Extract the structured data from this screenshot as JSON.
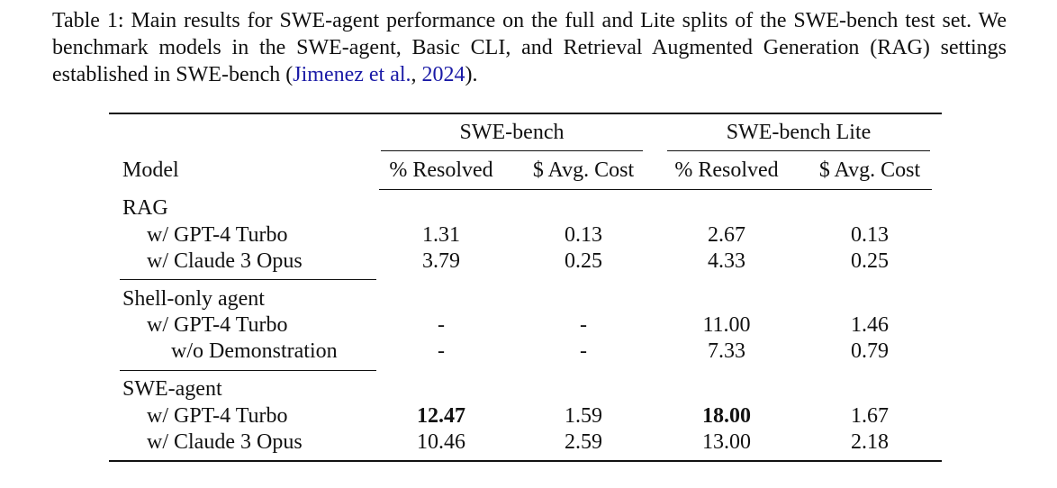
{
  "caption": {
    "label": "Table 1:",
    "text": " Main results for SWE-agent performance on the full and Lite splits of the SWE-bench test set. We benchmark models in the SWE-agent, Basic CLI, and Retrieval Augmented Generation (RAG) settings established in SWE-bench (",
    "cite_author": "Jimenez et al.",
    "cite_sep": ", ",
    "cite_year": "2024",
    "end": ")."
  },
  "table": {
    "group_headers": [
      "SWE-bench",
      "SWE-bench Lite"
    ],
    "columns": [
      "Model",
      "% Resolved",
      "$ Avg. Cost",
      "% Resolved",
      "$ Avg. Cost"
    ],
    "groups": [
      {
        "name": "RAG",
        "rows": [
          {
            "model": "w/ GPT-4 Turbo",
            "full_resolved": "1.31",
            "full_cost": "0.13",
            "lite_resolved": "2.67",
            "lite_cost": "0.13"
          },
          {
            "model": "w/ Claude 3 Opus",
            "full_resolved": "3.79",
            "full_cost": "0.25",
            "lite_resolved": "4.33",
            "lite_cost": "0.25"
          }
        ]
      },
      {
        "name": "Shell-only agent",
        "rows": [
          {
            "model": "w/ GPT-4 Turbo",
            "full_resolved": "-",
            "full_cost": "-",
            "lite_resolved": "11.00",
            "lite_cost": "1.46"
          },
          {
            "model": "w/o Demonstration",
            "full_resolved": "-",
            "full_cost": "-",
            "lite_resolved": "7.33",
            "lite_cost": "0.79"
          }
        ]
      },
      {
        "name": "SWE-agent",
        "rows": [
          {
            "model": "w/ GPT-4 Turbo",
            "full_resolved": "12.47",
            "full_cost": "1.59",
            "lite_resolved": "18.00",
            "lite_cost": "1.67"
          },
          {
            "model": "w/ Claude 3 Opus",
            "full_resolved": "10.46",
            "full_cost": "2.59",
            "lite_resolved": "13.00",
            "lite_cost": "2.18"
          }
        ]
      }
    ]
  }
}
